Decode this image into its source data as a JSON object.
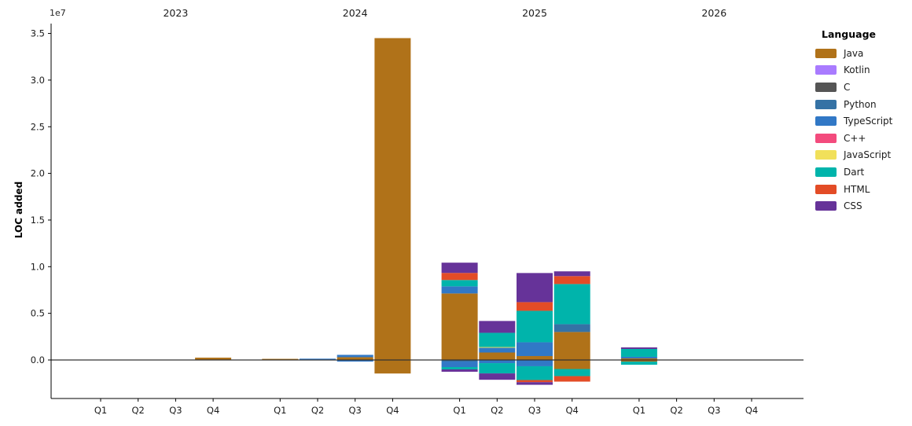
{
  "figure": {
    "background": "#ffffff"
  },
  "chart_data": {
    "type": "bar",
    "stacked": true,
    "title": "",
    "ylabel": "LOC added",
    "y_offset_text": "1e7",
    "xlabel": "",
    "grid": false,
    "zero_line": true,
    "x_group_labels": [
      "2023",
      "2024",
      "2025",
      "2026"
    ],
    "x_tick_labels": [
      "Q1",
      "Q2",
      "Q3",
      "Q4"
    ],
    "yticks": {
      "values_loc": [
        0,
        5000000,
        10000000,
        15000000,
        20000000,
        25000000,
        30000000,
        35000000
      ],
      "labels": [
        "0.0",
        "0.5",
        "1.0",
        "1.5",
        "2.0",
        "2.5",
        "3.0",
        "3.5"
      ]
    },
    "ylim_loc": [
      -4130000,
      36100000
    ],
    "legend": {
      "title": "Language",
      "position": "upper right outside",
      "entries": [
        {
          "label": "Java",
          "color": "#b07219"
        },
        {
          "label": "Kotlin",
          "color": "#A97BFF"
        },
        {
          "label": "C",
          "color": "#555555"
        },
        {
          "label": "Python",
          "color": "#3572A5"
        },
        {
          "label": "TypeScript",
          "color": "#3178C6"
        },
        {
          "label": "C++",
          "color": "#F34B7D"
        },
        {
          "label": "JavaScript",
          "color": "#F1E05A"
        },
        {
          "label": "Dart",
          "color": "#00B4AB"
        },
        {
          "label": "HTML",
          "color": "#E34C26"
        },
        {
          "label": "CSS",
          "color": "#663399"
        }
      ]
    },
    "bars": [
      {
        "year": "2023",
        "quarter": "Q1",
        "segments": []
      },
      {
        "year": "2023",
        "quarter": "Q2",
        "segments": []
      },
      {
        "year": "2023",
        "quarter": "Q3",
        "segments": []
      },
      {
        "year": "2023",
        "quarter": "Q4",
        "segments": [
          {
            "language": "Java",
            "loc": 250000
          }
        ]
      },
      {
        "year": "2024",
        "quarter": "Q1",
        "segments": [
          {
            "language": "Java",
            "loc": 120000
          }
        ]
      },
      {
        "year": "2024",
        "quarter": "Q2",
        "segments": [
          {
            "language": "TypeScript",
            "loc": 140000
          }
        ]
      },
      {
        "year": "2024",
        "quarter": "Q3",
        "segments": [
          {
            "language": "Java",
            "loc": 300000
          },
          {
            "language": "TypeScript",
            "loc": 250000
          },
          {
            "language": "TypeScript",
            "loc": -170000
          }
        ]
      },
      {
        "year": "2024",
        "quarter": "Q4",
        "segments": [
          {
            "language": "Java",
            "loc": 34500000
          },
          {
            "language": "Java",
            "loc": -1450000
          }
        ]
      },
      {
        "year": "2025",
        "quarter": "Q1",
        "segments": [
          {
            "language": "Java",
            "loc": 7130000
          },
          {
            "language": "TypeScript",
            "loc": 760000
          },
          {
            "language": "Dart",
            "loc": 680000
          },
          {
            "language": "HTML",
            "loc": 760000
          },
          {
            "language": "CSS",
            "loc": 1100000
          },
          {
            "language": "Python",
            "loc": -170000
          },
          {
            "language": "TypeScript",
            "loc": -590000
          },
          {
            "language": "Dart",
            "loc": -250000
          },
          {
            "language": "CSS",
            "loc": -250000
          }
        ]
      },
      {
        "year": "2025",
        "quarter": "Q2",
        "segments": [
          {
            "language": "Java",
            "loc": 800000
          },
          {
            "language": "TypeScript",
            "loc": 510000
          },
          {
            "language": "JavaScript",
            "loc": 80000
          },
          {
            "language": "Dart",
            "loc": 1520000
          },
          {
            "language": "CSS",
            "loc": 1270000
          },
          {
            "language": "TypeScript",
            "loc": -340000
          },
          {
            "language": "Dart",
            "loc": -1100000
          },
          {
            "language": "CSS",
            "loc": -680000
          }
        ]
      },
      {
        "year": "2025",
        "quarter": "Q3",
        "segments": [
          {
            "language": "Java",
            "loc": 420000
          },
          {
            "language": "TypeScript",
            "loc": 1480000
          },
          {
            "language": "Dart",
            "loc": 3370000
          },
          {
            "language": "HTML",
            "loc": 930000
          },
          {
            "language": "CSS",
            "loc": 3120000
          },
          {
            "language": "TypeScript",
            "loc": -670000
          },
          {
            "language": "Dart",
            "loc": -1480000
          },
          {
            "language": "HTML",
            "loc": -230000
          },
          {
            "language": "CSS",
            "loc": -280000
          }
        ]
      },
      {
        "year": "2025",
        "quarter": "Q4",
        "segments": [
          {
            "language": "Java",
            "loc": 3000000
          },
          {
            "language": "Python",
            "loc": 840000
          },
          {
            "language": "Dart",
            "loc": 4300000
          },
          {
            "language": "HTML",
            "loc": 850000
          },
          {
            "language": "CSS",
            "loc": 510000
          },
          {
            "language": "Java",
            "loc": -970000
          },
          {
            "language": "Dart",
            "loc": -760000
          },
          {
            "language": "HTML",
            "loc": -590000
          }
        ]
      },
      {
        "year": "2026",
        "quarter": "Q1",
        "segments": [
          {
            "language": "Java",
            "loc": 170000
          },
          {
            "language": "TypeScript",
            "loc": 170000
          },
          {
            "language": "Dart",
            "loc": 840000
          },
          {
            "language": "CSS",
            "loc": 170000
          },
          {
            "language": "Java",
            "loc": -170000
          },
          {
            "language": "Dart",
            "loc": -340000
          }
        ]
      },
      {
        "year": "2026",
        "quarter": "Q2",
        "segments": []
      },
      {
        "year": "2026",
        "quarter": "Q3",
        "segments": []
      },
      {
        "year": "2026",
        "quarter": "Q4",
        "segments": []
      }
    ]
  }
}
